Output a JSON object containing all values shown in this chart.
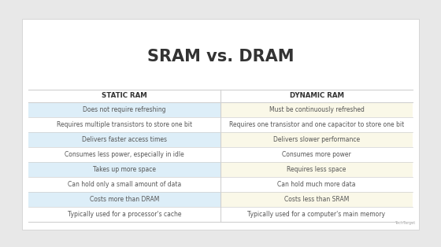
{
  "title": "SRAM vs. DRAM",
  "col1_header": "STATIC RAM",
  "col2_header": "DYNAMIC RAM",
  "rows": [
    [
      "Does not require refreshing",
      "Must be continuously refreshed"
    ],
    [
      "Requires multiple transistors to store one bit",
      "Requires one transistor and one capacitor to store one bit"
    ],
    [
      "Delivers faster access times",
      "Delivers slower performance"
    ],
    [
      "Consumes less power, especially in idle",
      "Consumes more power"
    ],
    [
      "Takes up more space",
      "Requires less space"
    ],
    [
      "Can hold only a small amount of data",
      "Can hold much more data"
    ],
    [
      "Costs more than DRAM",
      "Costs less than SRAM"
    ],
    [
      "Typically used for a processor's cache",
      "Typically used for a computer's main memory"
    ]
  ],
  "highlighted_rows": [
    0,
    2,
    4,
    6
  ],
  "col1_bg_normal": "#ffffff",
  "col1_bg_highlight": "#ddeef8",
  "col2_bg_normal": "#ffffff",
  "col2_bg_highlight": "#faf8e8",
  "title_color": "#333333",
  "header_color": "#333333",
  "cell_color": "#555555",
  "outer_bg": "#e8e8e8",
  "table_bg": "#ffffff",
  "divider_color": "#d0d0d0",
  "title_fontsize": 15,
  "header_fontsize": 6.2,
  "cell_fontsize": 5.5,
  "footer_text": "TechTarget"
}
